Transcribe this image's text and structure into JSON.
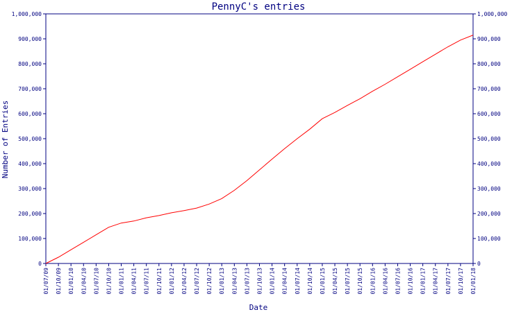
{
  "chart_data": {
    "type": "line",
    "title": "PennyC's entries",
    "xlabel": "Date",
    "ylabel": "Number of Entries",
    "ylim": [
      0,
      1000000
    ],
    "y_ticks": [
      0,
      100000,
      200000,
      300000,
      400000,
      500000,
      600000,
      700000,
      800000,
      900000,
      1000000
    ],
    "y_tick_labels": [
      "0",
      "100,000",
      "200,000",
      "300,000",
      "400,000",
      "500,000",
      "600,000",
      "700,000",
      "800,000",
      "900,000",
      "1,000,000"
    ],
    "x_tick_labels": [
      "01/07/09",
      "01/10/09",
      "01/01/10",
      "01/04/10",
      "01/07/10",
      "01/10/10",
      "01/01/11",
      "01/04/11",
      "01/07/11",
      "01/10/11",
      "01/01/12",
      "01/04/12",
      "01/07/12",
      "01/10/12",
      "01/01/13",
      "01/04/13",
      "01/07/13",
      "01/10/13",
      "01/01/14",
      "01/04/14",
      "01/07/14",
      "01/10/14",
      "01/01/15",
      "01/04/15",
      "01/07/15",
      "01/10/15",
      "01/01/16",
      "01/04/16",
      "01/07/16",
      "01/10/16",
      "01/01/17",
      "01/04/17",
      "01/07/17",
      "01/10/17",
      "01/01/18"
    ],
    "series": [
      {
        "x": [
          "01/07/09",
          "01/10/09",
          "01/01/10",
          "01/04/10",
          "01/07/10",
          "01/10/10",
          "01/01/11",
          "01/04/11",
          "01/07/11",
          "01/10/11",
          "01/01/12",
          "01/04/12",
          "01/07/12",
          "01/10/12",
          "01/01/13",
          "01/04/13",
          "01/07/13",
          "01/10/13",
          "01/01/14",
          "01/04/14",
          "01/07/14",
          "01/10/14",
          "01/01/15",
          "01/04/15",
          "01/07/15",
          "01/10/15",
          "01/01/16",
          "01/04/16",
          "01/07/16",
          "01/10/16",
          "01/01/17",
          "01/04/17",
          "01/07/17",
          "01/10/17",
          "01/01/18"
        ],
        "values": [
          0,
          25000,
          55000,
          85000,
          115000,
          145000,
          162000,
          170000,
          183000,
          192000,
          203000,
          212000,
          222000,
          238000,
          260000,
          293000,
          332000,
          375000,
          418000,
          460000,
          500000,
          538000,
          580000,
          605000,
          633000,
          660000,
          690000,
          718000,
          748000,
          778000,
          808000,
          838000,
          868000,
          895000,
          915000
        ],
        "color": "#ff0000"
      }
    ],
    "grid": false,
    "legend": "none"
  }
}
